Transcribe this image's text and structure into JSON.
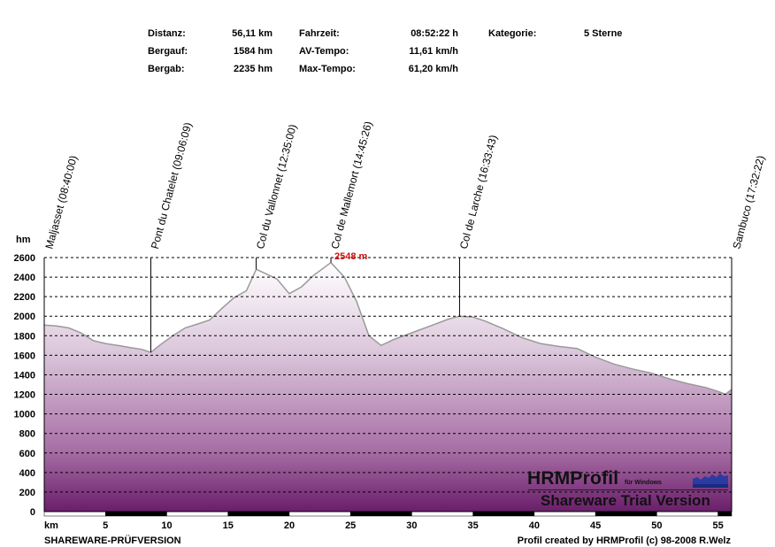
{
  "stats": {
    "distanz_label": "Distanz:",
    "distanz_value": "56,11 km",
    "bergauf_label": "Bergauf:",
    "bergauf_value": "1584 hm",
    "bergab_label": "Bergab:",
    "bergab_value": "2235 hm",
    "fahrzeit_label": "Fahrzeit:",
    "fahrzeit_value": "08:52:22 h",
    "avtempo_label": "AV-Tempo:",
    "avtempo_value": "11,61 km/h",
    "maxtempo_label": "Max-Tempo:",
    "maxtempo_value": "61,20 km/h",
    "kategorie_label": "Kategorie:",
    "kategorie_value": "5 Sterne"
  },
  "chart_data": {
    "type": "area",
    "ylabel": "hm",
    "xlabel": "km",
    "ylim": [
      0,
      2600
    ],
    "xlim": [
      0,
      56.11
    ],
    "yticks": [
      0,
      200,
      400,
      600,
      800,
      1000,
      1200,
      1400,
      1600,
      1800,
      2000,
      2200,
      2400,
      2600
    ],
    "xticks": [
      5,
      10,
      15,
      20,
      25,
      30,
      35,
      40,
      45,
      50,
      55
    ],
    "grid": true,
    "max_label": "2548 m",
    "max_point": [
      23.4,
      2548
    ],
    "waypoints": [
      {
        "km": 0,
        "label": "Maljasset (08:40:00)"
      },
      {
        "km": 8.7,
        "label": "Pont du Chatelet (09:06:09)"
      },
      {
        "km": 17.3,
        "label": "Col du Vallonnet (12:35:00)"
      },
      {
        "km": 23.4,
        "label": "Col de Mallemort (14:45:26)"
      },
      {
        "km": 33.9,
        "label": "Col de Larche (16:33:43)"
      },
      {
        "km": 56.11,
        "label": "Sambuco (17:32:22)"
      }
    ],
    "profile": [
      [
        0,
        1910
      ],
      [
        1,
        1900
      ],
      [
        2,
        1880
      ],
      [
        3,
        1830
      ],
      [
        4,
        1750
      ],
      [
        5,
        1720
      ],
      [
        6,
        1700
      ],
      [
        7,
        1680
      ],
      [
        8,
        1660
      ],
      [
        8.7,
        1630
      ],
      [
        9.5,
        1710
      ],
      [
        10.5,
        1800
      ],
      [
        11.5,
        1880
      ],
      [
        12.5,
        1920
      ],
      [
        13.5,
        1960
      ],
      [
        14.5,
        2080
      ],
      [
        15.5,
        2190
      ],
      [
        16.5,
        2260
      ],
      [
        17.3,
        2480
      ],
      [
        18,
        2440
      ],
      [
        19,
        2380
      ],
      [
        20,
        2230
      ],
      [
        21,
        2300
      ],
      [
        22,
        2420
      ],
      [
        23.4,
        2548
      ],
      [
        24.5,
        2400
      ],
      [
        25.5,
        2150
      ],
      [
        26.5,
        1800
      ],
      [
        27.5,
        1700
      ],
      [
        28.5,
        1760
      ],
      [
        30,
        1830
      ],
      [
        31.5,
        1900
      ],
      [
        33,
        1970
      ],
      [
        33.9,
        2000
      ],
      [
        35,
        1990
      ],
      [
        36,
        1950
      ],
      [
        37.5,
        1870
      ],
      [
        39,
        1780
      ],
      [
        40.5,
        1720
      ],
      [
        42,
        1690
      ],
      [
        43.5,
        1670
      ],
      [
        45,
        1580
      ],
      [
        46.5,
        1510
      ],
      [
        48,
        1460
      ],
      [
        49.5,
        1420
      ],
      [
        51,
        1360
      ],
      [
        52.5,
        1310
      ],
      [
        54,
        1270
      ],
      [
        55,
        1230
      ],
      [
        55.6,
        1200
      ],
      [
        56.11,
        1250
      ]
    ]
  },
  "footer": {
    "left": "SHAREWARE-PRÜFVERSION",
    "right": "Profil created by HRMProfil (c) 98-2008 R.Welz"
  },
  "watermark": {
    "title": "HRMProfil",
    "sub": "für Windows",
    "trial": "Shareware Trial  Version"
  }
}
